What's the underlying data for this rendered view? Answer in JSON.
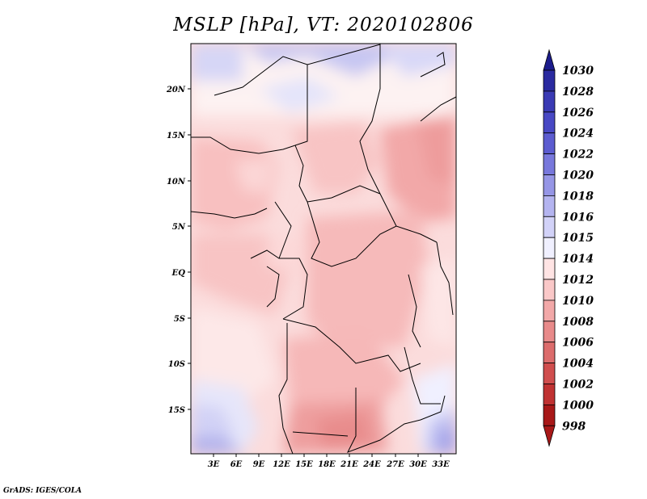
{
  "title": "MSLP [hPa], VT: 2020102806",
  "credit": "GrADS: IGES/COLA",
  "map": {
    "lat_labels": [
      "20N",
      "15N",
      "10N",
      "5N",
      "EQ",
      "5S",
      "10S",
      "15S"
    ],
    "lon_labels": [
      "3E",
      "6E",
      "9E",
      "12E",
      "15E",
      "18E",
      "21E",
      "24E",
      "27E",
      "30E",
      "33E"
    ]
  },
  "legend": {
    "levels": [
      "1030",
      "1028",
      "1026",
      "1024",
      "1022",
      "1020",
      "1018",
      "1016",
      "1015",
      "1014",
      "1012",
      "1010",
      "1008",
      "1006",
      "1004",
      "1002",
      "1000",
      "998"
    ],
    "colors": [
      "#1c1c8c",
      "#2a2aa0",
      "#3a3ab4",
      "#4848c4",
      "#5c5cd0",
      "#7878dc",
      "#9696e6",
      "#b4b4f0",
      "#d2d2f8",
      "#f0f0ff",
      "#ffe4e4",
      "#fac8c8",
      "#f2a8a8",
      "#e88a8a",
      "#dc6c6c",
      "#d04e4e",
      "#c03232",
      "#a81818"
    ]
  }
}
